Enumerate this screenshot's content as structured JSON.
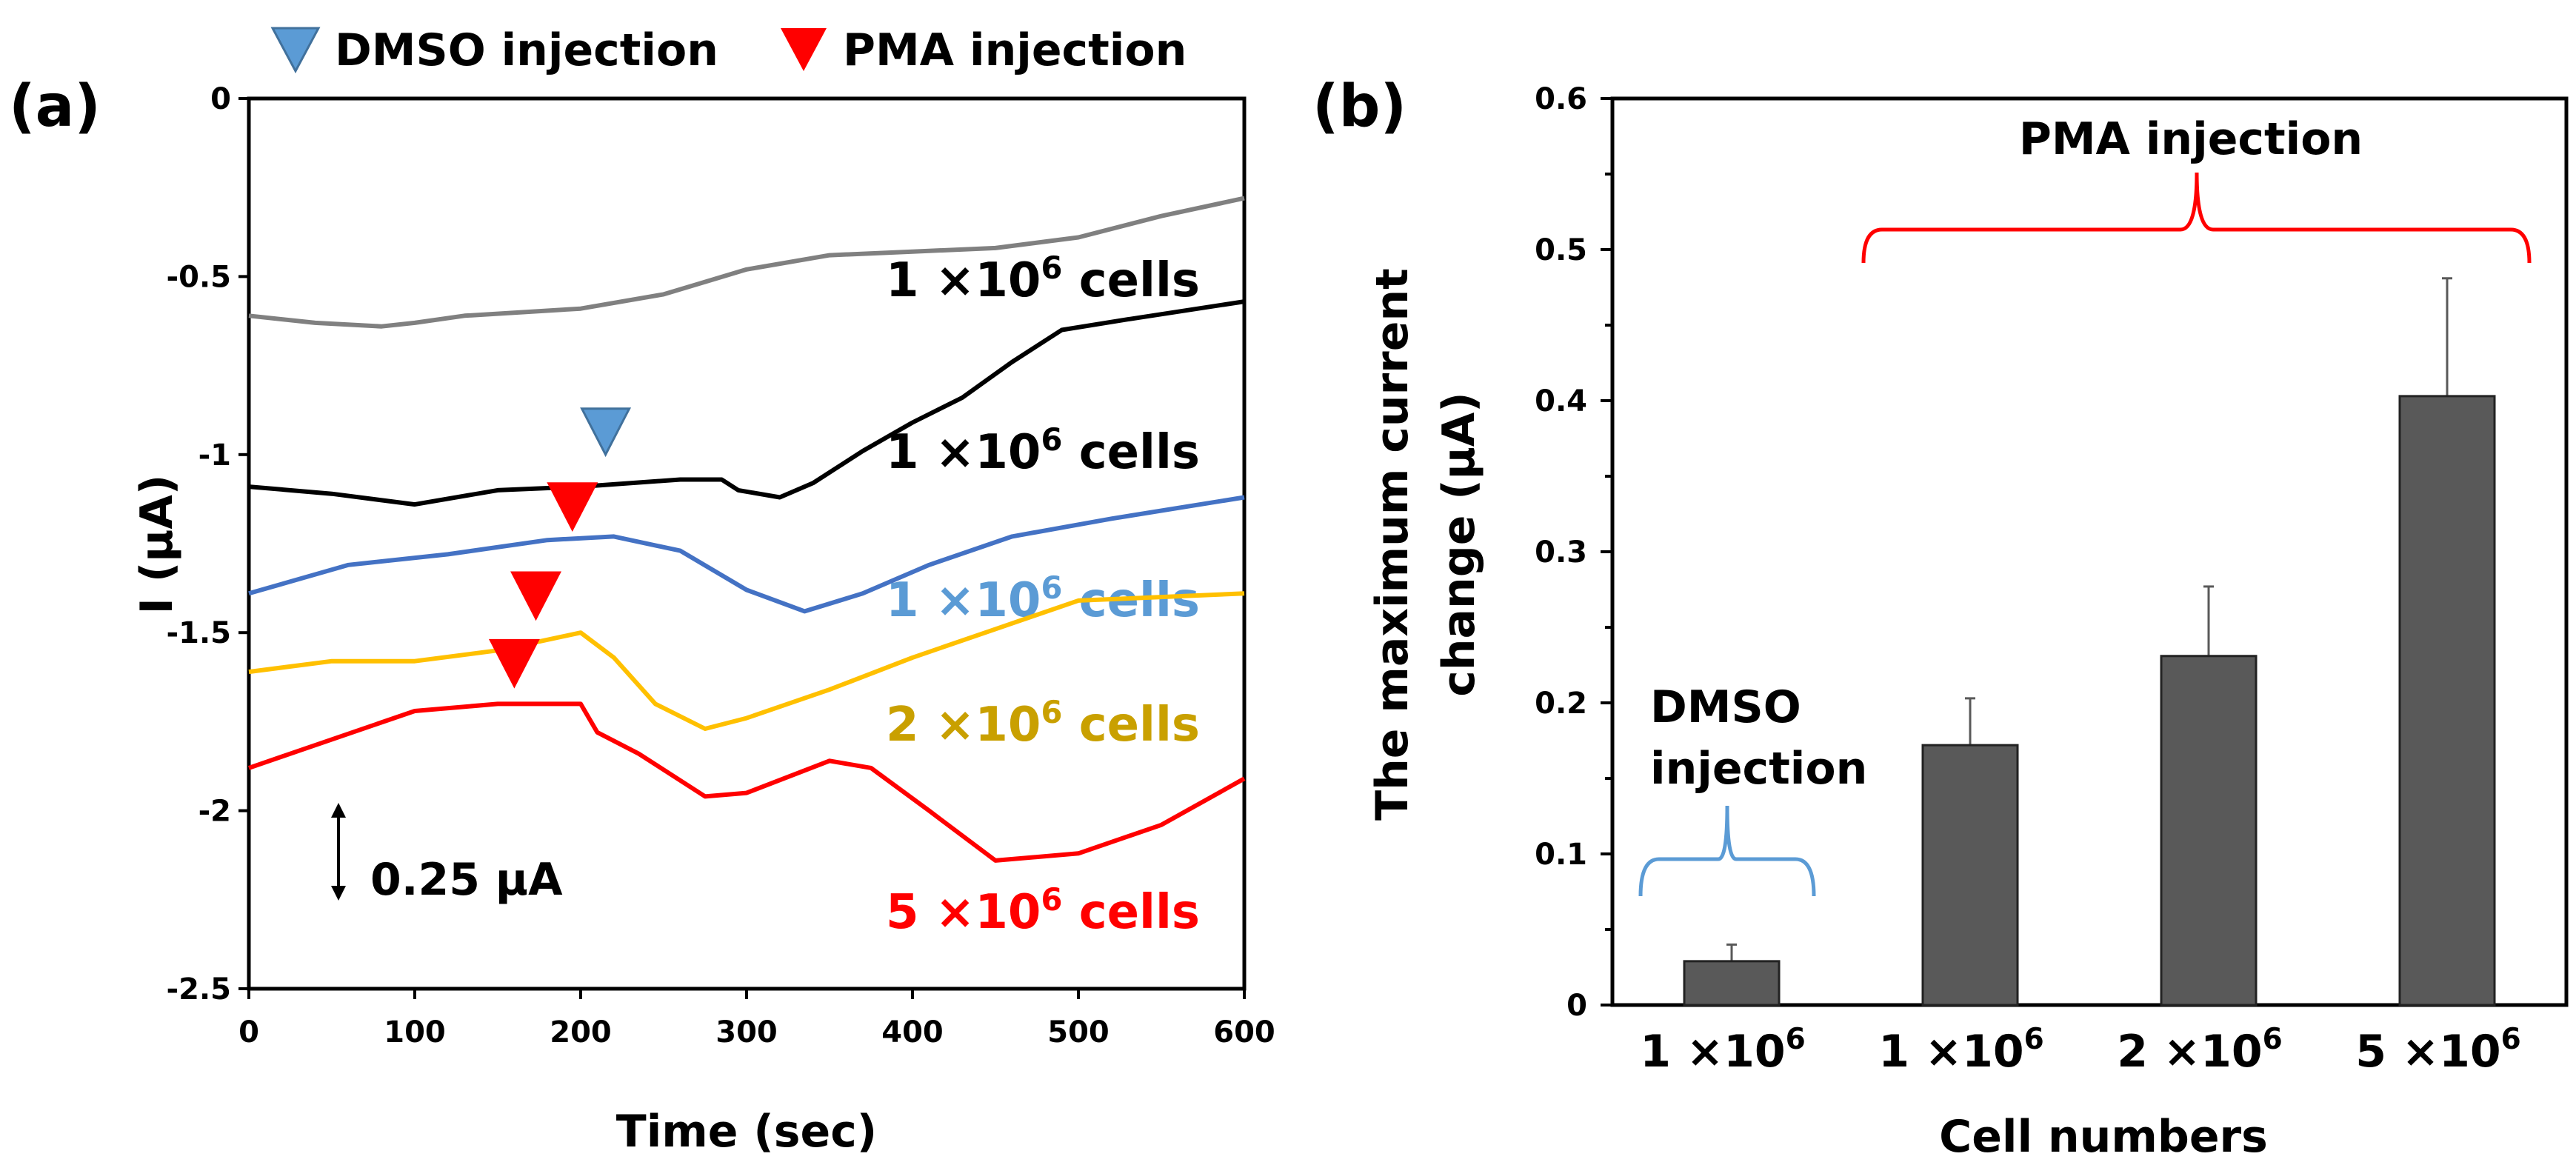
{
  "chart_data": [
    {
      "type": "line",
      "panel_label": "(a)",
      "xlabel": "Time (sec)",
      "ylabel": "I (μA)",
      "xlim": [
        0,
        600
      ],
      "ylim": [
        -2.5,
        0
      ],
      "xticks": [
        "0",
        "100",
        "200",
        "300",
        "400",
        "500",
        "600"
      ],
      "yticks": [
        "0",
        "-0.5",
        "-1",
        "-1.5",
        "-2",
        "-2.5"
      ],
      "legend": {
        "placement": "top",
        "items": [
          {
            "label": "DMSO injection",
            "marker": "triangle-down",
            "color": "#5b9bd5"
          },
          {
            "label": "PMA injection",
            "marker": "triangle-down",
            "color": "#ff0000"
          }
        ]
      },
      "scale_bar": "0.25 μA",
      "series": [
        {
          "label": "1 ×10",
          "sup": "6",
          "suffix": " cells",
          "color": "#808080",
          "label_color": "#000000",
          "x": [
            0,
            40,
            80,
            100,
            130,
            200,
            250,
            300,
            350,
            400,
            450,
            500,
            550,
            600
          ],
          "y": [
            -0.61,
            -0.63,
            -0.64,
            -0.63,
            -0.61,
            -0.59,
            -0.55,
            -0.48,
            -0.44,
            -0.43,
            -0.42,
            -0.39,
            -0.33,
            -0.28
          ]
        },
        {
          "label": "1 ×10",
          "sup": "6",
          "suffix": " cells",
          "color": "#000000",
          "label_color": "#000000",
          "x": [
            0,
            50,
            100,
            150,
            200,
            260,
            285,
            295,
            320,
            340,
            370,
            400,
            430,
            460,
            490,
            530,
            600
          ],
          "y": [
            -1.09,
            -1.11,
            -1.14,
            -1.1,
            -1.09,
            -1.07,
            -1.07,
            -1.1,
            -1.12,
            -1.08,
            -0.99,
            -0.91,
            -0.84,
            -0.74,
            -0.65,
            -0.62,
            -0.57
          ]
        },
        {
          "label": "1 ×10",
          "sup": "6",
          "suffix": " cells",
          "color": "#4472c4",
          "label_color": "#5b9bd5",
          "x": [
            0,
            60,
            120,
            180,
            220,
            260,
            300,
            335,
            370,
            410,
            460,
            520,
            600
          ],
          "y": [
            -1.39,
            -1.31,
            -1.28,
            -1.24,
            -1.23,
            -1.27,
            -1.38,
            -1.44,
            -1.39,
            -1.31,
            -1.23,
            -1.18,
            -1.12
          ]
        },
        {
          "label": "2 ×10",
          "sup": "6",
          "suffix": " cells",
          "color": "#ffc000",
          "label_color": "#c9a000",
          "x": [
            0,
            50,
            100,
            150,
            200,
            220,
            245,
            275,
            300,
            350,
            400,
            450,
            500,
            600
          ],
          "y": [
            -1.61,
            -1.58,
            -1.58,
            -1.55,
            -1.5,
            -1.57,
            -1.7,
            -1.77,
            -1.74,
            -1.66,
            -1.57,
            -1.49,
            -1.41,
            -1.39
          ]
        },
        {
          "label": "5 ×10",
          "sup": "6",
          "suffix": " cells",
          "color": "#ff0000",
          "label_color": "#ff0000",
          "x": [
            0,
            50,
            100,
            150,
            200,
            210,
            235,
            275,
            300,
            350,
            375,
            410,
            450,
            500,
            550,
            600
          ],
          "y": [
            -1.88,
            -1.8,
            -1.72,
            -1.7,
            -1.7,
            -1.78,
            -1.84,
            -1.96,
            -1.95,
            -1.86,
            -1.88,
            -2.0,
            -2.14,
            -2.12,
            -2.04,
            -1.91
          ]
        }
      ],
      "markers": [
        {
          "type": "DMSO injection",
          "x": 215,
          "y": -1.0,
          "color": "#5b9bd5"
        },
        {
          "type": "PMA injection",
          "x": 195,
          "y": -1.21,
          "color": "#ff0000"
        },
        {
          "type": "PMA injection",
          "x": 173,
          "y": -1.46,
          "color": "#ff0000"
        },
        {
          "type": "PMA injection",
          "x": 160,
          "y": -1.65,
          "color": "#ff0000"
        }
      ]
    },
    {
      "type": "bar",
      "panel_label": "(b)",
      "xlabel": "Cell numbers",
      "ylabel_lines": [
        "The maximum current",
        "change (μA)"
      ],
      "ylim": [
        0,
        0.6
      ],
      "yticks": [
        "0",
        "0.1",
        "0.2",
        "0.3",
        "0.4",
        "0.5",
        "0.6"
      ],
      "categories": [
        {
          "base": "1 ×10",
          "sup": "6"
        },
        {
          "base": "1 ×10",
          "sup": "6"
        },
        {
          "base": "2 ×10",
          "sup": "6"
        },
        {
          "base": "5 ×10",
          "sup": "6"
        }
      ],
      "values": [
        0.029,
        0.172,
        0.231,
        0.403
      ],
      "errors": [
        0.011,
        0.031,
        0.046,
        0.078
      ],
      "bar_color": "#595959",
      "annotations": [
        {
          "text_lines": [
            "DMSO",
            "injection"
          ],
          "bracket_color": "#5b9bd5"
        },
        {
          "text_lines": [
            "PMA injection"
          ],
          "bracket_color": "#ff0000"
        }
      ]
    }
  ]
}
